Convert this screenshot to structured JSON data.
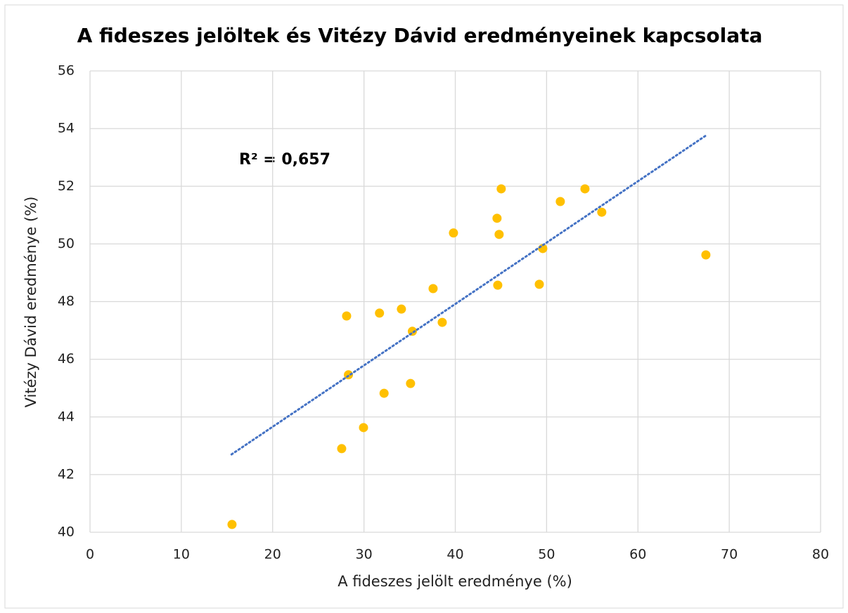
{
  "chart_data": {
    "type": "scatter",
    "title": "A fideszes jelöltek és Vitézy Dávid eredményeinek kapcsolata",
    "xlabel": "A fideszes jelölt eredménye (%)",
    "ylabel": "Vitézy Dávid eredménye (%)",
    "annotation": "R² = 0,657",
    "series": [
      {
        "color": "#FFC000",
        "x": [
          15.55,
          27.56,
          28.1,
          28.3,
          29.95,
          31.7,
          32.2,
          34.1,
          35.1,
          35.3,
          37.57,
          38.57,
          39.8,
          44.57,
          44.65,
          44.8,
          45.03,
          49.2,
          49.58,
          51.5,
          54.2,
          56.04,
          67.44
        ],
        "values": [
          40.27,
          42.9,
          47.5,
          45.46,
          43.63,
          47.6,
          44.82,
          47.74,
          45.16,
          46.97,
          48.45,
          47.28,
          50.38,
          50.89,
          48.57,
          50.33,
          51.91,
          48.6,
          49.84,
          51.47,
          51.91,
          51.1,
          49.62
        ]
      }
    ],
    "trendline": {
      "color": "#4472C4",
      "x": [
        15.5,
        67.4
      ],
      "y": [
        42.7,
        53.75
      ]
    },
    "xlim": [
      0,
      80
    ],
    "xticks": [
      0,
      10,
      20,
      30,
      40,
      50,
      60,
      70,
      80
    ],
    "ylim": [
      40,
      56
    ],
    "yticks": [
      40,
      42,
      44,
      46,
      48,
      50,
      52,
      54,
      56
    ],
    "grid": true
  }
}
